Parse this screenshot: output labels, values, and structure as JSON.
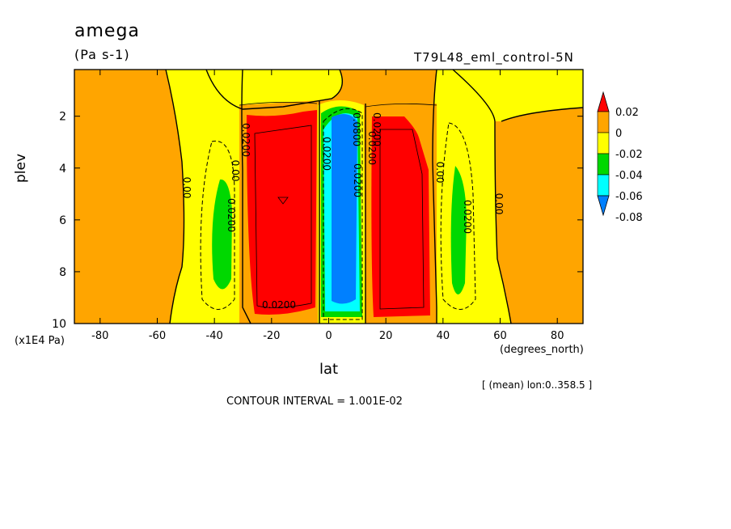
{
  "chart_data": {
    "type": "heatmap",
    "title": "amega",
    "units": "(Pa s-1)",
    "run_label": "T79L48_eml_control-5N",
    "xlabel": "lat",
    "x_unit_label": "(degrees_north)",
    "ylabel": "plev",
    "y_multiplier_label": "(x1E4 Pa)",
    "averaging_label": "[ (mean) lon:0..358.5 ]",
    "contour_interval_label": "CONTOUR INTERVAL = 1.001E-02",
    "x_ticks": [
      "-80",
      "-60",
      "-40",
      "-20",
      "0",
      "20",
      "40",
      "60",
      "80"
    ],
    "x_tick_values": [
      -80,
      -60,
      -40,
      -20,
      0,
      20,
      40,
      60,
      80
    ],
    "y_ticks": [
      "2",
      "4",
      "6",
      "8",
      "10"
    ],
    "y_tick_values": [
      2,
      4,
      6,
      8,
      10
    ],
    "xlim": [
      -89,
      89
    ],
    "ylim": [
      10,
      0.2
    ],
    "colorbar": {
      "labels": [
        "0.02",
        "0",
        "-0.02",
        "-0.04",
        "-0.06",
        "-0.08"
      ],
      "colors": [
        "#ff0000",
        "#ffa500",
        "#ffff00",
        "#00d800",
        "#00ffff",
        "#0080ff"
      ],
      "over_color": "#ff0000",
      "under_color": "#0080ff"
    },
    "contour_labels": [
      "0.00",
      "0.00",
      "0.0200",
      "0.0200",
      "0.0200",
      "0.00",
      "0.00",
      "0.0200",
      "0.0200",
      "0.0200",
      "0.0200",
      "0.0200",
      "0.0800"
    ],
    "regions": [
      {
        "name": "weak-descent-sh",
        "color": "#ffa500",
        "lat": [
          -89,
          -55
        ],
        "plev": [
          0.2,
          10
        ]
      },
      {
        "name": "weak-ascent-sh",
        "color": "#ffff00",
        "lat": [
          -52,
          -31
        ],
        "plev": [
          1.5,
          10
        ]
      },
      {
        "name": "descent-sh-core",
        "color": "#ff0000",
        "lat": [
          -29,
          -5
        ],
        "plev": [
          1.9,
          9.6
        ]
      },
      {
        "name": "ascent-itcz",
        "color": "#0080ff",
        "lat": [
          -3,
          12
        ],
        "plev": [
          1.6,
          9.6
        ]
      },
      {
        "name": "descent-nh-core",
        "color": "#ff0000",
        "lat": [
          15,
          37
        ],
        "plev": [
          1.9,
          9.6
        ]
      },
      {
        "name": "weak-ascent-nh",
        "color": "#ffff00",
        "lat": [
          39,
          56
        ],
        "plev": [
          1.5,
          10
        ]
      },
      {
        "name": "weak-descent-nh",
        "color": "#ffa500",
        "lat": [
          58,
          89
        ],
        "plev": [
          1.2,
          10
        ]
      }
    ]
  }
}
